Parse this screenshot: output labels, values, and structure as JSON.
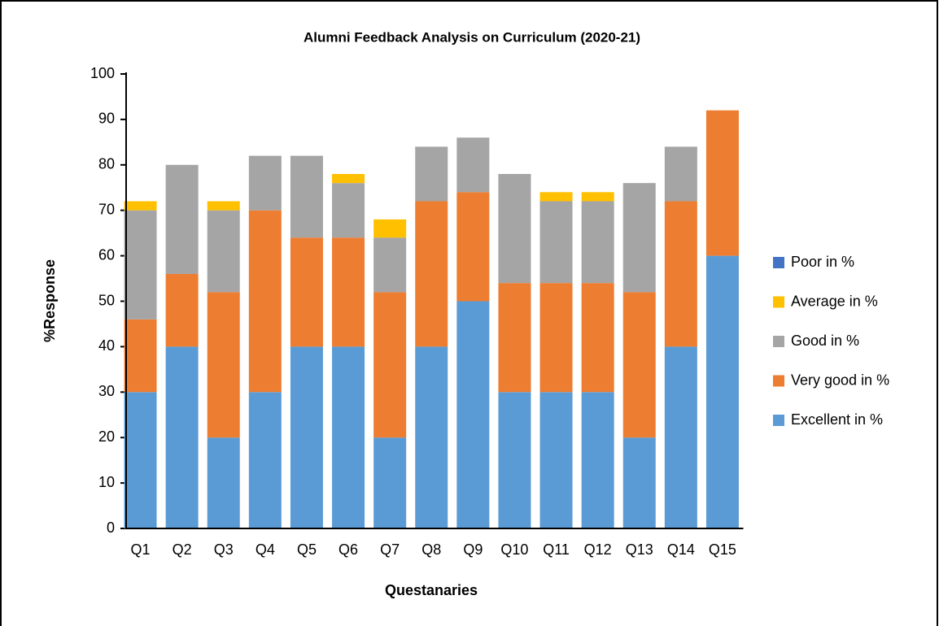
{
  "chart_data": {
    "type": "stacked_bar",
    "title": "Alumni Feedback Analysis on Curriculum  (2020-21)",
    "x_label": "Questanaries",
    "y_label": "%Response",
    "categories": [
      "Q1",
      "Q2",
      "Q3",
      "Q4",
      "Q5",
      "Q6",
      "Q7",
      "Q8",
      "Q9",
      "Q10",
      "Q11",
      "Q12",
      "Q13",
      "Q14",
      "Q15"
    ],
    "series": [
      {
        "name": "Excellent in %",
        "color": "#5b9bd5",
        "values": [
          30,
          40,
          20,
          30,
          40,
          40,
          20,
          40,
          50,
          30,
          30,
          30,
          20,
          40,
          60
        ]
      },
      {
        "name": "Very good in %",
        "color": "#ed7d31",
        "values": [
          16,
          16,
          32,
          40,
          24,
          24,
          32,
          32,
          24,
          24,
          24,
          24,
          32,
          32,
          32
        ]
      },
      {
        "name": "Good in %",
        "color": "#a5a5a5",
        "values": [
          24,
          24,
          18,
          12,
          18,
          12,
          12,
          12,
          12,
          24,
          18,
          18,
          24,
          12,
          0
        ]
      },
      {
        "name": "Average in %",
        "color": "#ffc000",
        "values": [
          2,
          0,
          2,
          0,
          0,
          2,
          4,
          0,
          0,
          0,
          2,
          2,
          0,
          0,
          0
        ]
      },
      {
        "name": "Poor in %",
        "color": "#4472c4",
        "values": [
          0,
          0,
          0,
          0,
          0,
          0,
          0,
          0,
          0,
          0,
          0,
          0,
          0,
          0,
          0
        ]
      }
    ],
    "ylim": [
      0,
      100
    ],
    "yticks": [
      0,
      10,
      20,
      30,
      40,
      50,
      60,
      70,
      80,
      90,
      100
    ],
    "legend": "right"
  }
}
